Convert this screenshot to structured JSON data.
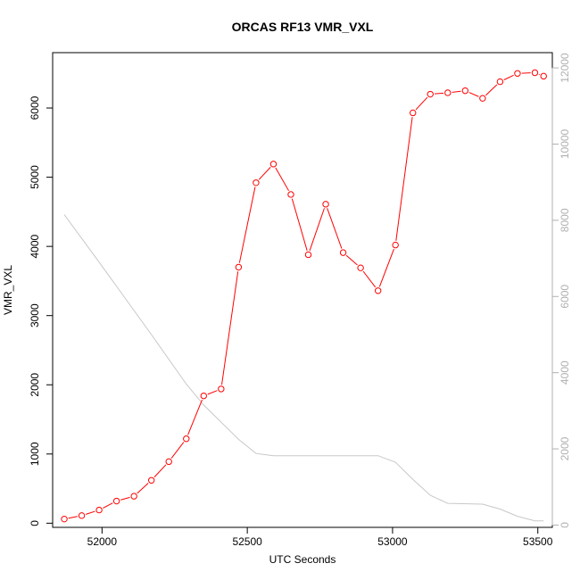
{
  "chart_data": {
    "type": "line",
    "title": "ORCAS RF13 VMR_VXL",
    "xlabel": "UTC Seconds",
    "ylabel": "VMR_VXL",
    "xlim": [
      51830,
      53550
    ],
    "ylim": [
      -60,
      6800
    ],
    "y2lim": [
      -60,
      12400
    ],
    "x_ticks": [
      52000,
      52500,
      53000,
      53500
    ],
    "y_ticks": [
      0,
      1000,
      2000,
      3000,
      4000,
      5000,
      6000
    ],
    "y2_ticks": [
      0,
      2000,
      4000,
      6000,
      8000,
      10000,
      12000
    ],
    "colors": {
      "primary": "#ff0000",
      "secondary": "#c8c8c8",
      "right_axis": "#b0b0b0"
    },
    "series": [
      {
        "axis": "left",
        "marker": "open-circle",
        "x": [
          51870,
          51930,
          51990,
          52050,
          52110,
          52170,
          52230,
          52290,
          52350,
          52410,
          52470,
          52530,
          52590,
          52650,
          52710,
          52770,
          52830,
          52890,
          52950,
          53010,
          53070,
          53130,
          53190,
          53250,
          53310,
          53370,
          53430,
          53490,
          53520
        ],
        "values": [
          60,
          110,
          190,
          320,
          390,
          620,
          890,
          1220,
          1840,
          1940,
          3700,
          4920,
          5190,
          4750,
          3880,
          4610,
          3910,
          3690,
          3360,
          4020,
          5930,
          6200,
          6220,
          6250,
          6140,
          6380,
          6500,
          6510,
          6460
        ]
      },
      {
        "axis": "right",
        "marker": "none",
        "x": [
          51870,
          51990,
          52170,
          52290,
          52350,
          52470,
          52530,
          52590,
          52950,
          53010,
          53070,
          53130,
          53190,
          53310,
          53370,
          53430,
          53490,
          53520
        ],
        "values": [
          8150,
          6900,
          5000,
          3700,
          3150,
          2250,
          1880,
          1820,
          1820,
          1650,
          1200,
          780,
          570,
          550,
          420,
          230,
          110,
          110
        ]
      }
    ]
  }
}
